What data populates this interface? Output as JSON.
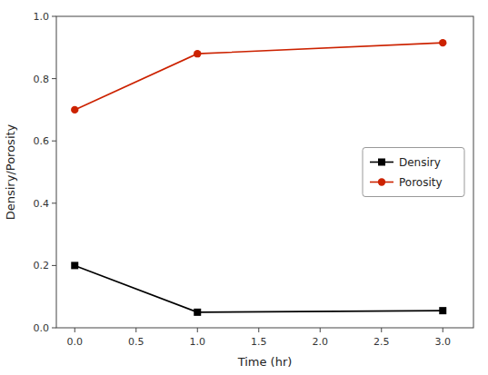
{
  "chart_data": {
    "type": "line",
    "xlabel": "Time (hr)",
    "ylabel": "Densiry/Porosity",
    "x": [
      0,
      1,
      3
    ],
    "series": [
      {
        "name": "Densiry",
        "color": "#000000",
        "marker": "square",
        "values": [
          0.2,
          0.05,
          0.055
        ]
      },
      {
        "name": "Porosity",
        "color": "#cc2200",
        "marker": "circle",
        "values": [
          0.7,
          0.88,
          0.915
        ]
      }
    ],
    "xlim": [
      -0.15,
      3.25
    ],
    "ylim": [
      0.0,
      1.0
    ],
    "xticks": [
      {
        "value": 0.0,
        "label": "0.0"
      },
      0.5,
      {
        "value": 1.0,
        "label": "1.0"
      },
      1.5,
      {
        "value": 2.0,
        "label": "2.0"
      },
      2.5,
      {
        "value": 3.0,
        "label": "3.0"
      }
    ],
    "yticks": [
      {
        "value": 0.0,
        "label": "0.0"
      },
      0.2,
      0.4,
      0.6,
      0.8,
      {
        "value": 1.0,
        "label": "1.0"
      }
    ],
    "grid": false,
    "legend": "center right"
  }
}
